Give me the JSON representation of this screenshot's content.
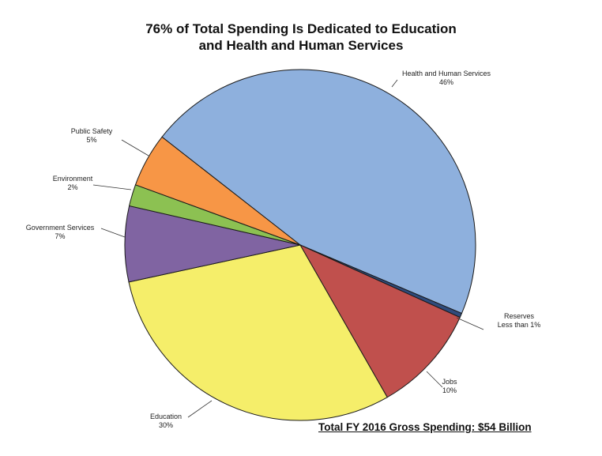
{
  "chart_data": {
    "type": "pie",
    "title_lines": [
      "76% of Total Spending Is Dedicated to Education",
      "and Health and Human Services"
    ],
    "footnote": "Total FY 2016 Gross Spending: $54 Billion",
    "start_angle_deg": -142,
    "direction": "clockwise",
    "slices": [
      {
        "name": "Health and Human Services",
        "value_label": "46%",
        "value": 46.0,
        "color": "#8eb0dd"
      },
      {
        "name": "Reserves",
        "value_label": "Less than 1%",
        "value": 0.4,
        "color": "#2f4b7c"
      },
      {
        "name": "Jobs",
        "value_label": "10%",
        "value": 10.0,
        "color": "#c0504d"
      },
      {
        "name": "Education",
        "value_label": "30%",
        "value": 30.0,
        "color": "#f5ee6a"
      },
      {
        "name": "Government Services",
        "value_label": "7%",
        "value": 7.0,
        "color": "#8064a2"
      },
      {
        "name": "Environment",
        "value_label": "2%",
        "value": 2.0,
        "color": "#8cc152"
      },
      {
        "name": "Public Safety",
        "value_label": "5%",
        "value": 5.0,
        "color": "#f79646"
      }
    ]
  }
}
